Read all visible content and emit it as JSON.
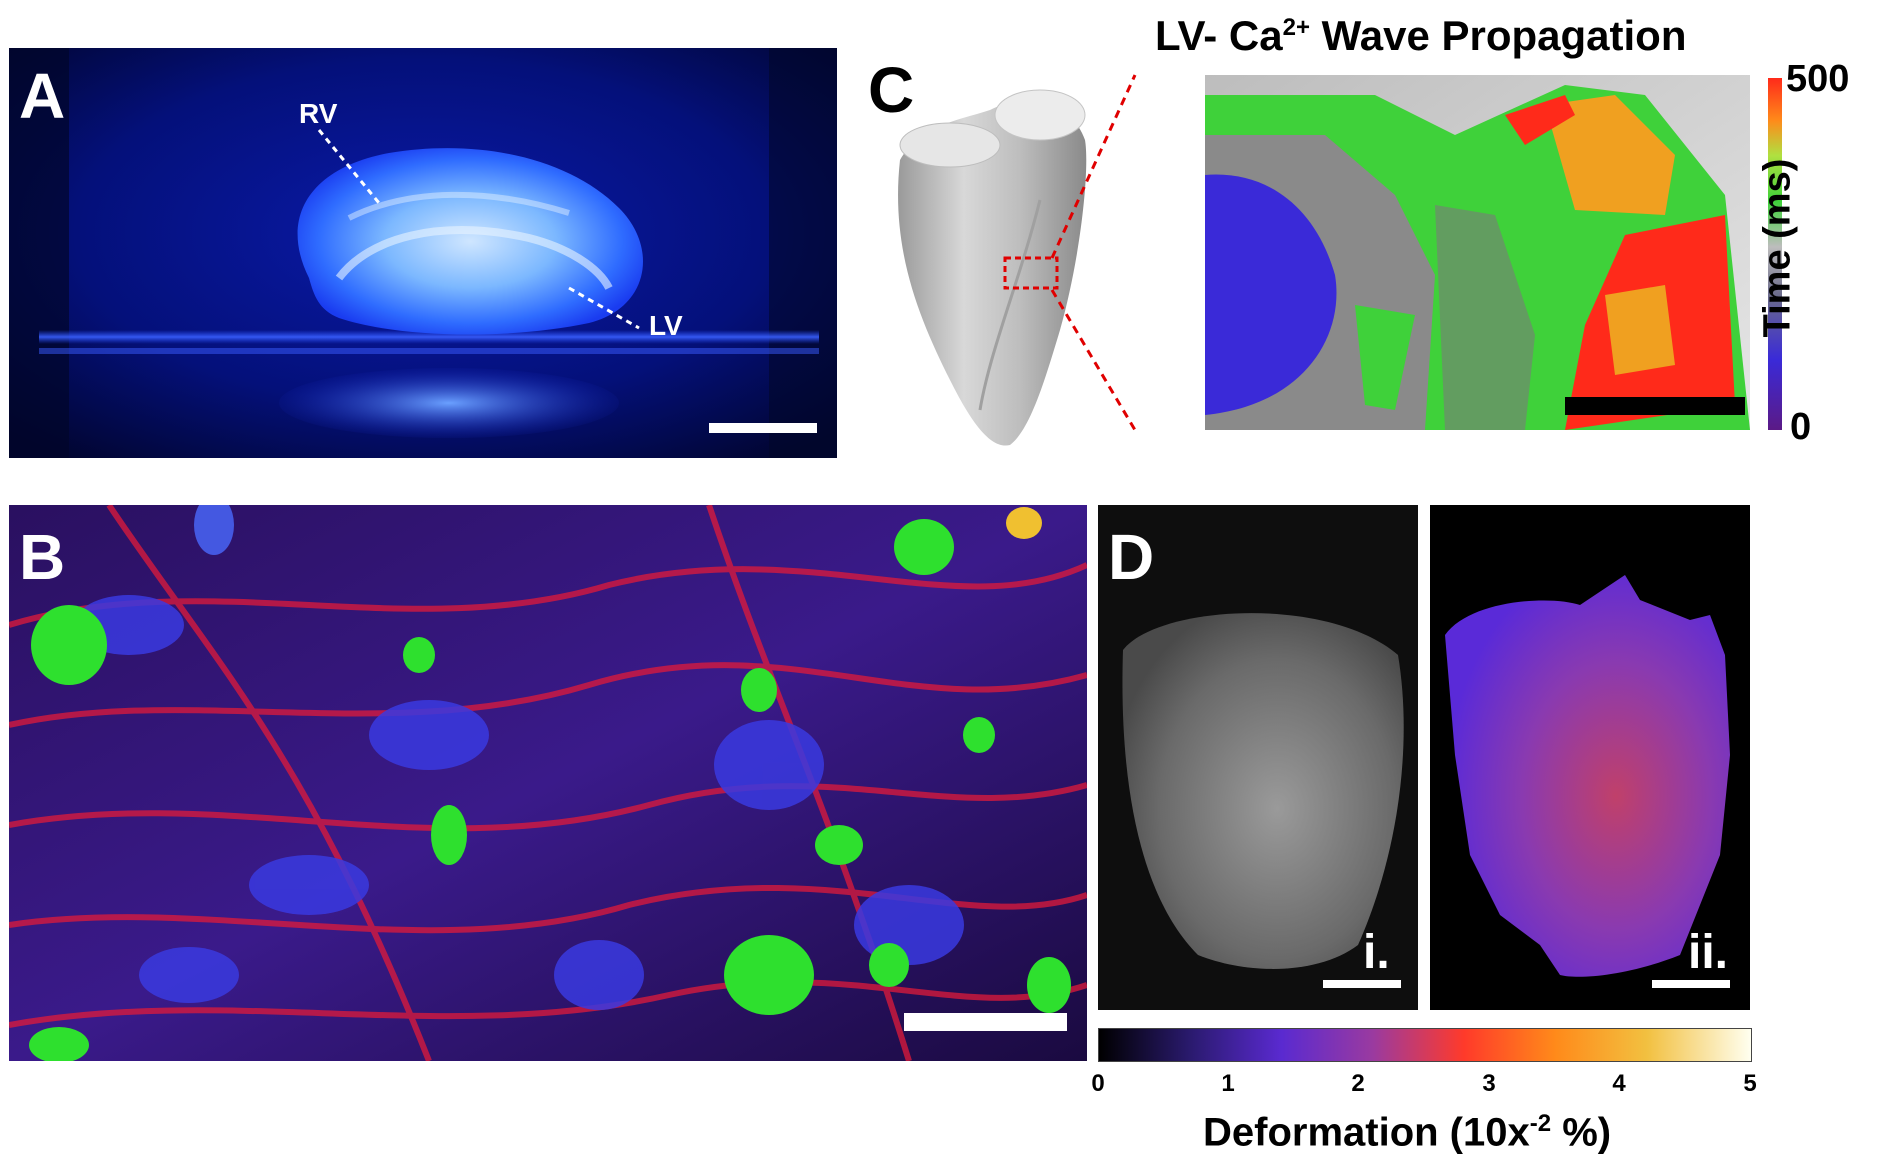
{
  "panels": {
    "a": {
      "letter": "A",
      "labels": {
        "rv": "RV",
        "lv": "LV"
      }
    },
    "b": {
      "letter": "B"
    },
    "c": {
      "letter": "C",
      "title_main": "LV- Ca",
      "title_sup": "2+",
      "title_rest": " Wave Propagation",
      "colorbar": {
        "max": "500",
        "min": "0",
        "axis_label": "Time (ms)",
        "colors": [
          "#5b1a86",
          "#3a2ad8",
          "#8a8a8a",
          "#c8c8c8",
          "#3fd13a",
          "#f2e53a",
          "#ff2a1a"
        ]
      }
    },
    "d": {
      "letter": "D",
      "sub_i": "i.",
      "sub_ii": "ii.",
      "colorbar": {
        "ticks": [
          "0",
          "1",
          "2",
          "3",
          "4",
          "5"
        ],
        "axis_label_main": "Deformation (10x",
        "axis_label_sup": "-2",
        "axis_label_rest": " %)",
        "colors": [
          "#000000",
          "#2a1a6e",
          "#5a2ad0",
          "#9a3aa0",
          "#ff3a2a",
          "#ff8a1a",
          "#f2c040",
          "#fffff0"
        ]
      }
    }
  }
}
